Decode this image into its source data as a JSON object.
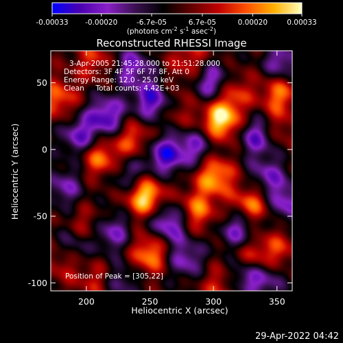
{
  "chart_data": {
    "type": "heatmap",
    "title": "Reconstructed RHESSI Image",
    "xlabel": "Heliocentric X (arcsec)",
    "ylabel": "Heliocentric Y (arcsec)",
    "xlim": [
      172,
      362
    ],
    "ylim": [
      -106,
      74
    ],
    "x_ticks": [
      200,
      250,
      300,
      350
    ],
    "y_ticks": [
      50,
      0,
      -50,
      -100
    ],
    "colorbar": {
      "range": [
        -0.00033,
        0.00033
      ],
      "tick_labels": [
        "-0.00033",
        "-0.00020",
        "-6.7e-05",
        "6.7e-05",
        "0.00020",
        "0.00033"
      ],
      "tick_values": [
        -0.00033,
        -0.0002,
        -6.7e-05,
        6.7e-05,
        0.0002,
        0.00033
      ],
      "units_prefix": "(photons cm",
      "units_sup1": "-2",
      "units_mid": " s",
      "units_sup2": "-1",
      "units_mid2": " asec",
      "units_sup3": "-2",
      "units_suffix": ")",
      "colors": [
        "#0000ff",
        "#4a00b0",
        "#8a20c8",
        "#3a1050",
        "#000000",
        "#600000",
        "#c00000",
        "#ff5000",
        "#ffb000",
        "#ffffc0"
      ]
    },
    "annotations": {
      "line1": "3-Apr-2005 21:45:28.000 to 21:51:28.000",
      "line2": "Detectors: 3F 4F 5F 6F 7F 8F, Att 0",
      "line3": "Energy Range: 12.0 - 25.0 keV",
      "line4": "Clean     Total counts: 4.42E+03",
      "peak": "Position of Peak = [305,22]"
    },
    "sources": [
      {
        "x": 246,
        "y": -35,
        "value": 0.00033
      },
      {
        "x": 306,
        "y": 22,
        "value": 0.00033
      },
      {
        "x": 301,
        "y": -20,
        "value": 0.00026
      },
      {
        "x": 250,
        "y": -78,
        "value": 0.00024
      },
      {
        "x": 211,
        "y": -6,
        "value": 0.00022
      },
      {
        "x": 237,
        "y": 8,
        "value": 0.00018
      },
      {
        "x": 315,
        "y": 43,
        "value": 0.00017
      },
      {
        "x": 330,
        "y": -42,
        "value": 0.00023
      },
      {
        "x": 287,
        "y": -46,
        "value": 0.00021
      },
      {
        "x": 331,
        "y": -80,
        "value": 0.00018
      },
      {
        "x": 178,
        "y": 38,
        "value": 0.00019
      },
      {
        "x": 206,
        "y": 67,
        "value": 0.00014
      },
      {
        "x": 281,
        "y": 68,
        "value": 0.00014
      },
      {
        "x": 352,
        "y": 42,
        "value": 0.00021
      },
      {
        "x": 350,
        "y": 15,
        "value": 0.00012
      },
      {
        "x": 200,
        "y": -58,
        "value": 0.00013
      },
      {
        "x": 208,
        "y": -98,
        "value": 0.00012
      },
      {
        "x": 182,
        "y": -84,
        "value": 0.00013
      },
      {
        "x": 305,
        "y": -102,
        "value": 0.00014
      },
      {
        "x": 352,
        "y": -75,
        "value": 0.00013
      },
      {
        "x": 271,
        "y": 26,
        "value": 8e-05
      },
      {
        "x": 265,
        "y": 43,
        "value": 7e-05
      },
      {
        "x": 253,
        "y": 37,
        "value": -0.00029
      },
      {
        "x": 262,
        "y": -4,
        "value": -0.00027
      },
      {
        "x": 216,
        "y": 25,
        "value": -0.00026
      },
      {
        "x": 195,
        "y": 10,
        "value": -0.00022
      },
      {
        "x": 265,
        "y": -55,
        "value": -0.00025
      },
      {
        "x": 234,
        "y": -20,
        "value": -0.00016
      },
      {
        "x": 220,
        "y": -62,
        "value": -0.0002
      },
      {
        "x": 335,
        "y": 10,
        "value": -0.00024
      },
      {
        "x": 343,
        "y": -20,
        "value": -0.00018
      },
      {
        "x": 320,
        "y": -60,
        "value": -0.00022
      },
      {
        "x": 278,
        "y": -82,
        "value": -0.00019
      },
      {
        "x": 300,
        "y": 50,
        "value": -0.00024
      },
      {
        "x": 354,
        "y": 65,
        "value": -0.0002
      },
      {
        "x": 183,
        "y": -28,
        "value": -0.00017
      },
      {
        "x": 190,
        "y": -72,
        "value": -0.00016
      },
      {
        "x": 357,
        "y": -40,
        "value": -0.0002
      },
      {
        "x": 236,
        "y": 62,
        "value": -0.0002
      },
      {
        "x": 325,
        "y": -95,
        "value": -0.00019
      },
      {
        "x": 342,
        "y": -98,
        "value": -0.00014
      },
      {
        "x": 286,
        "y": 2,
        "value": -0.00019
      },
      {
        "x": 227,
        "y": -99,
        "value": -0.00014
      }
    ]
  },
  "footer": {
    "timestamp": "29-Apr-2022 04:42"
  }
}
